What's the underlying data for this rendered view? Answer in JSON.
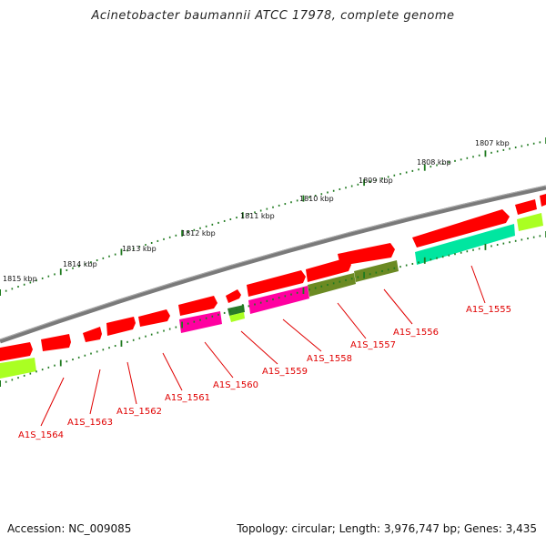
{
  "title": "Acinetobacter baumannii ATCC 17978, complete genome",
  "accession": "Accession: NC_009085",
  "topology": "Topology: circular; Length: 3,976,747 bp; Genes: 3,435",
  "colors": {
    "backbone": "#7a7a7a",
    "tick": "#1f7a1f",
    "gene_forward": "#ff0000",
    "gene_label": "#e00000",
    "feature_green": "#00e6a0",
    "feature_olive": "#6b8a23",
    "feature_magenta": "#ff00a0",
    "feature_lime": "#aaff22"
  },
  "scale_labels": [
    "1807 kbp",
    "1808 kbp",
    "1809 kbp",
    "1810 kbp",
    "1811 kbp",
    "1812 kbp",
    "1813 kbp",
    "1814 kbp",
    "1815 kbp"
  ],
  "gene_labels": [
    "A1S_1555",
    "A1S_1556",
    "A1S_1557",
    "A1S_1558",
    "A1S_1559",
    "A1S_1560",
    "A1S_1561",
    "A1S_1562",
    "A1S_1563",
    "A1S_1564"
  ]
}
